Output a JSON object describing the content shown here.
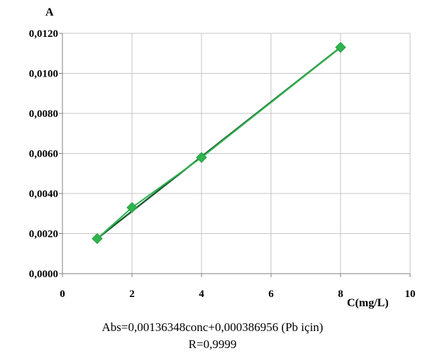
{
  "chart_data": {
    "type": "line",
    "ylabel": "A",
    "xlabel": "C(mg/L)",
    "x": [
      1,
      2,
      4,
      8
    ],
    "series": [
      {
        "values": [
          0.00175,
          0.0033,
          0.0058,
          0.0113
        ],
        "color": "#2eb34e"
      }
    ],
    "fit_line": {
      "x": [
        1,
        8
      ],
      "y": [
        0.00175,
        0.0113
      ],
      "color": "#1a5e33"
    },
    "xlim": [
      0,
      10
    ],
    "ylim": [
      0,
      0.012
    ],
    "xticks": [
      0,
      2,
      4,
      6,
      8,
      10
    ],
    "xtick_labels": [
      "0",
      "2",
      "4",
      "6",
      "8",
      "10"
    ],
    "yticks": [
      0,
      0.002,
      0.004,
      0.006,
      0.008,
      0.01,
      0.012
    ],
    "ytick_labels": [
      "0,0000",
      "0,0020",
      "0,0040",
      "0,0060",
      "0,0080",
      "0,0100",
      "0,0120"
    ],
    "grid": true,
    "legend": "none"
  },
  "caption": {
    "equation": "Abs=0,00136348conc+0,000386956 (Pb için)",
    "r_value": "R=0,9999"
  }
}
